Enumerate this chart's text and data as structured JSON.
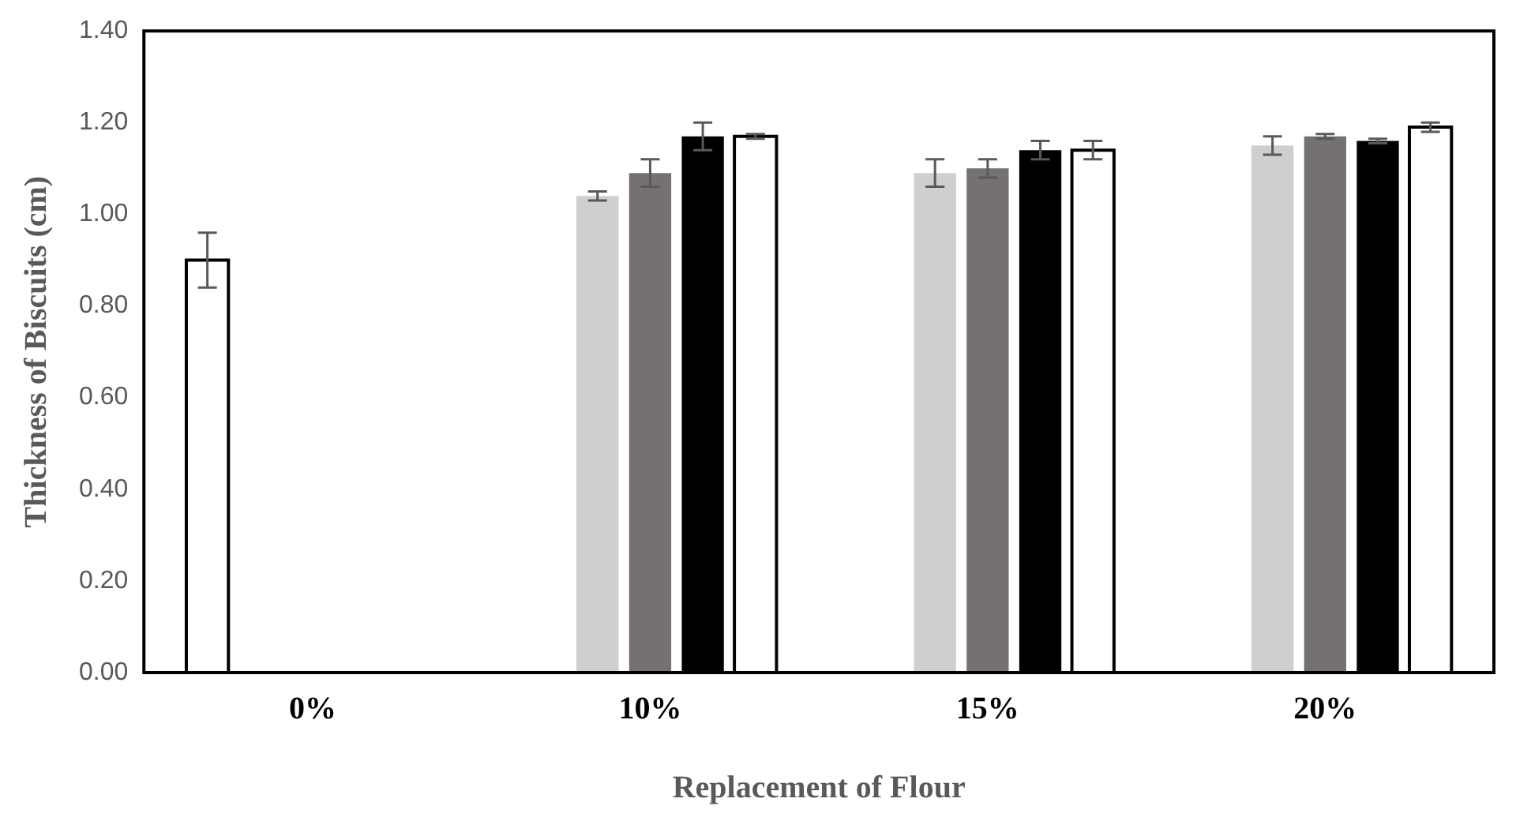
{
  "chart_data": {
    "type": "bar",
    "xlabel": "Replacement of Flour",
    "ylabel": "Thickness of Biscuits (cm)",
    "categories": [
      "0%",
      "10%",
      "15%",
      "20%"
    ],
    "series": [
      {
        "color": "#ffffff",
        "values": [
          0.9,
          null,
          null,
          null
        ],
        "errors": [
          0.06,
          null,
          null,
          null
        ]
      },
      {
        "color": "#d0cece",
        "values": [
          null,
          1.04,
          1.09,
          1.15
        ],
        "errors": [
          null,
          0.01,
          0.03,
          0.02
        ]
      },
      {
        "color": "#767171",
        "values": [
          null,
          1.09,
          1.1,
          1.17
        ],
        "errors": [
          null,
          0.03,
          0.02,
          0.005
        ]
      },
      {
        "color": "#000000",
        "values": [
          null,
          1.17,
          1.14,
          1.16
        ],
        "errors": [
          null,
          0.03,
          0.02,
          0.005
        ]
      },
      {
        "color": "#ffffff",
        "values": [
          null,
          1.17,
          1.14,
          1.19
        ],
        "errors": [
          null,
          0.005,
          0.02,
          0.01
        ]
      }
    ],
    "ylim": [
      0,
      1.4
    ],
    "yticks": [
      {
        "value": 0,
        "label": "0.00"
      },
      {
        "value": 0.2,
        "label": "0.20"
      },
      {
        "value": 0.4,
        "label": "0.40"
      },
      {
        "value": 0.6,
        "label": "0.60"
      },
      {
        "value": 0.8,
        "label": "0.80"
      },
      {
        "value": 1.0,
        "label": "1.00"
      },
      {
        "value": 1.2,
        "label": "1.20"
      },
      {
        "value": 1.4,
        "label": "1.40"
      }
    ],
    "grid": false,
    "legend": false
  }
}
